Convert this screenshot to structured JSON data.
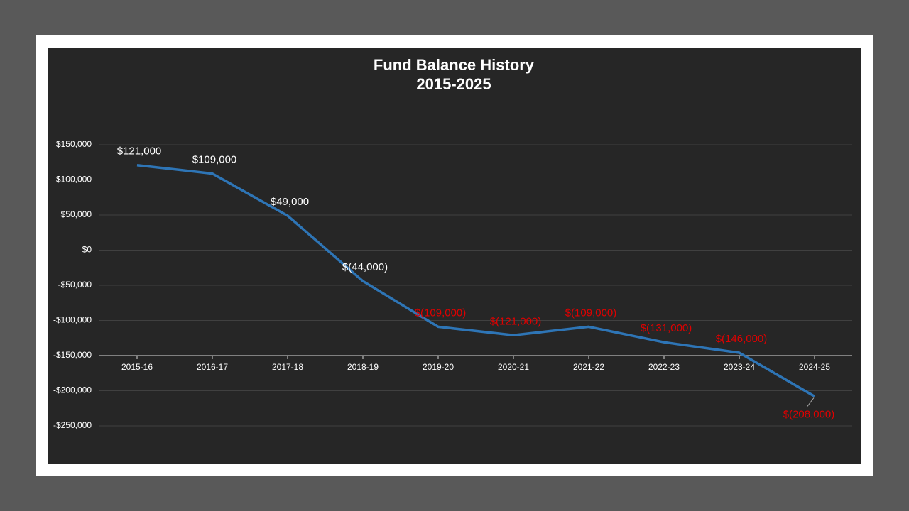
{
  "chart_data": {
    "type": "line",
    "title": "Fund Balance History",
    "subtitle": "2015-2025",
    "categories": [
      "2015-16",
      "2016-17",
      "2017-18",
      "2018-19",
      "2019-20",
      "2020-21",
      "2021-22",
      "2022-23",
      "2023-24",
      "2024-25"
    ],
    "series": [
      {
        "name": "Fund Balance",
        "color": "#2e75b6",
        "values": [
          121000,
          109000,
          49000,
          -44000,
          -109000,
          -121000,
          -109000,
          -131000,
          -146000,
          -208000
        ],
        "value_labels": [
          "$121,000",
          "$109,000",
          "$49,000",
          "$(44,000)",
          "$(109,000)",
          "$(121,000)",
          "$(109,000)",
          "$(131,000)",
          "$(146,000)",
          "$(208,000)"
        ],
        "label_colors": [
          "#ffffff",
          "#ffffff",
          "#ffffff",
          "#ffffff",
          "#e00000",
          "#e00000",
          "#e00000",
          "#e00000",
          "#e00000",
          "#e00000"
        ]
      }
    ],
    "ylim": [
      -250000,
      150000
    ],
    "yticks": [
      {
        "value": 150000,
        "label": "$150,000"
      },
      {
        "value": 100000,
        "label": "$100,000"
      },
      {
        "value": 50000,
        "label": "$50,000"
      },
      {
        "value": 0,
        "label": "$0"
      },
      {
        "value": -50000,
        "label": "-$50,000"
      },
      {
        "value": -100000,
        "label": "-$100,000"
      },
      {
        "value": -150000,
        "label": "-$150,000"
      },
      {
        "value": -200000,
        "label": "-$200,000"
      },
      {
        "value": -250000,
        "label": "-$250,000"
      }
    ],
    "x_axis_crosses": -150000,
    "grid": true
  }
}
